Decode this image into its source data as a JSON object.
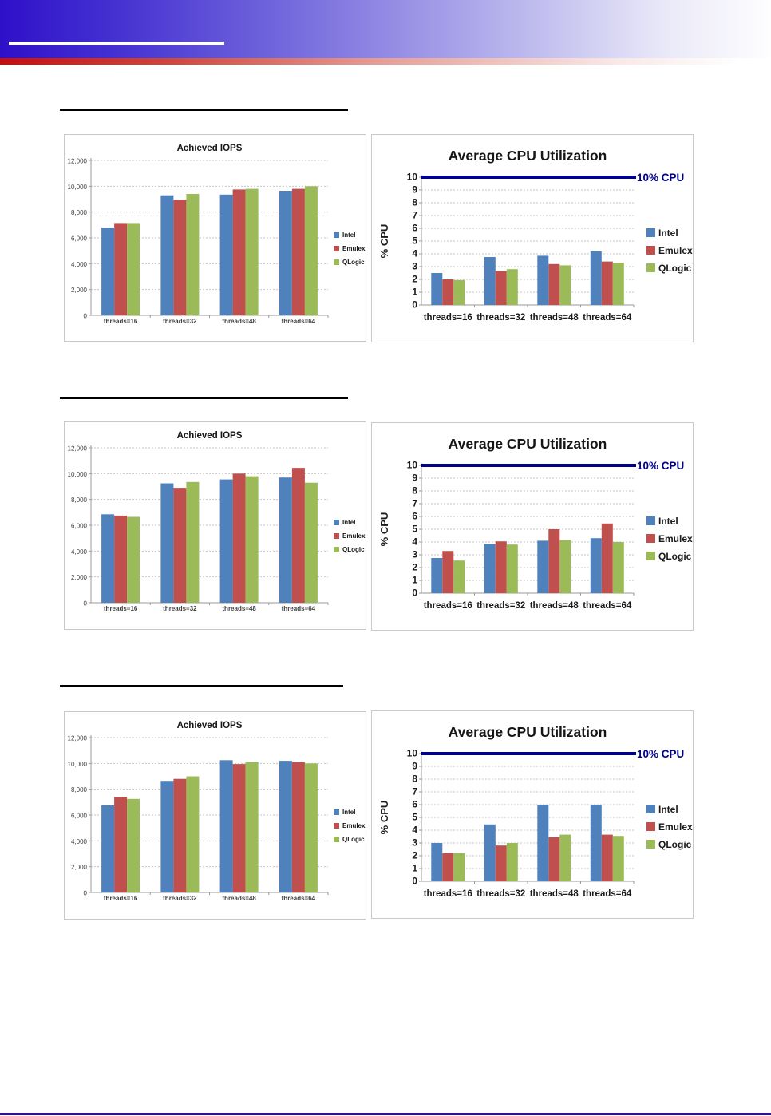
{
  "page": {
    "banner": {
      "gradient_left_color": "#2f10c9",
      "gradient_right_color": "#ffffff",
      "underline_color": "#ffffff",
      "red_stripe_left_color": "#c40f0f"
    },
    "footer_rule_color": "#2e0c9c",
    "section_heading_rules": 3
  },
  "legend_labels": [
    "Intel",
    "Emulex",
    "QLogic"
  ],
  "series_colors": {
    "Intel": "#4F81BD",
    "Emulex": "#C0504D",
    "QLogic": "#9BBB59"
  },
  "cpu_reference": {
    "label": "10% CPU",
    "value": 10,
    "color": "#00008B"
  },
  "chart_data": [
    {
      "id": "row1-iops",
      "type": "bar",
      "variant": "iops",
      "title": "Achieved IOPS",
      "categories": [
        "threads=16",
        "threads=32",
        "threads=48",
        "threads=64"
      ],
      "series": [
        {
          "name": "Intel",
          "color": "#4F81BD",
          "values": [
            6800,
            9300,
            9350,
            9650
          ]
        },
        {
          "name": "Emulex",
          "color": "#C0504D",
          "values": [
            7150,
            8950,
            9750,
            9800
          ]
        },
        {
          "name": "QLogic",
          "color": "#9BBB59",
          "values": [
            7150,
            9400,
            9800,
            10000
          ]
        }
      ],
      "xlabel": "",
      "ylabel": "",
      "ylim": [
        0,
        12000
      ],
      "ystep": 2000,
      "tick_format": "comma",
      "grid": true,
      "legend_position": "right"
    },
    {
      "id": "row1-cpu",
      "type": "bar",
      "variant": "cpu",
      "title": "Average CPU Utilization",
      "categories": [
        "threads=16",
        "threads=32",
        "threads=48",
        "threads=64"
      ],
      "series": [
        {
          "name": "Intel",
          "color": "#4F81BD",
          "values": [
            2.5,
            3.75,
            3.85,
            4.2
          ]
        },
        {
          "name": "Emulex",
          "color": "#C0504D",
          "values": [
            2.0,
            2.65,
            3.2,
            3.4
          ]
        },
        {
          "name": "QLogic",
          "color": "#9BBB59",
          "values": [
            1.95,
            2.8,
            3.1,
            3.3
          ]
        }
      ],
      "xlabel": "",
      "ylabel": "% CPU",
      "ylim": [
        0,
        10
      ],
      "ystep": 1,
      "tick_format": "plain",
      "grid": true,
      "legend_position": "right",
      "ref_line": {
        "value": 10,
        "label": "10% CPU",
        "color": "#00008B"
      }
    },
    {
      "id": "row2-iops",
      "type": "bar",
      "variant": "iops",
      "title": "Achieved IOPS",
      "categories": [
        "threads=16",
        "threads=32",
        "threads=48",
        "threads=64"
      ],
      "series": [
        {
          "name": "Intel",
          "color": "#4F81BD",
          "values": [
            6850,
            9250,
            9550,
            9700
          ]
        },
        {
          "name": "Emulex",
          "color": "#C0504D",
          "values": [
            6750,
            8900,
            10000,
            10450
          ]
        },
        {
          "name": "QLogic",
          "color": "#9BBB59",
          "values": [
            6650,
            9350,
            9800,
            9300
          ]
        }
      ],
      "xlabel": "",
      "ylabel": "",
      "ylim": [
        0,
        12000
      ],
      "ystep": 2000,
      "tick_format": "comma",
      "grid": true,
      "legend_position": "right"
    },
    {
      "id": "row2-cpu",
      "type": "bar",
      "variant": "cpu",
      "title": "Average CPU Utilization",
      "categories": [
        "threads=16",
        "threads=32",
        "threads=48",
        "threads=64"
      ],
      "series": [
        {
          "name": "Intel",
          "color": "#4F81BD",
          "values": [
            2.75,
            3.85,
            4.1,
            4.3
          ]
        },
        {
          "name": "Emulex",
          "color": "#C0504D",
          "values": [
            3.3,
            4.05,
            5.0,
            5.45
          ]
        },
        {
          "name": "QLogic",
          "color": "#9BBB59",
          "values": [
            2.55,
            3.8,
            4.15,
            4.0
          ]
        }
      ],
      "xlabel": "",
      "ylabel": "% CPU",
      "ylim": [
        0,
        10
      ],
      "ystep": 1,
      "tick_format": "plain",
      "grid": true,
      "legend_position": "right",
      "ref_line": {
        "value": 10,
        "label": "10% CPU",
        "color": "#00008B"
      }
    },
    {
      "id": "row3-iops",
      "type": "bar",
      "variant": "iops",
      "title": "Achieved IOPS",
      "categories": [
        "threads=16",
        "threads=32",
        "threads=48",
        "threads=64"
      ],
      "series": [
        {
          "name": "Intel",
          "color": "#4F81BD",
          "values": [
            6750,
            8650,
            10250,
            10200
          ]
        },
        {
          "name": "Emulex",
          "color": "#C0504D",
          "values": [
            7400,
            8800,
            9950,
            10100
          ]
        },
        {
          "name": "QLogic",
          "color": "#9BBB59",
          "values": [
            7250,
            9000,
            10100,
            10000
          ]
        }
      ],
      "xlabel": "",
      "ylabel": "",
      "ylim": [
        0,
        12000
      ],
      "ystep": 2000,
      "tick_format": "comma",
      "grid": true,
      "legend_position": "right"
    },
    {
      "id": "row3-cpu",
      "type": "bar",
      "variant": "cpu",
      "title": "Average CPU Utilization",
      "categories": [
        "threads=16",
        "threads=32",
        "threads=48",
        "threads=64"
      ],
      "series": [
        {
          "name": "Intel",
          "color": "#4F81BD",
          "values": [
            3.0,
            4.45,
            6.0,
            6.0
          ]
        },
        {
          "name": "Emulex",
          "color": "#C0504D",
          "values": [
            2.2,
            2.8,
            3.45,
            3.65
          ]
        },
        {
          "name": "QLogic",
          "color": "#9BBB59",
          "values": [
            2.2,
            3.0,
            3.65,
            3.55
          ]
        }
      ],
      "xlabel": "",
      "ylabel": "% CPU",
      "ylim": [
        0,
        10
      ],
      "ystep": 1,
      "tick_format": "plain",
      "grid": true,
      "legend_position": "right",
      "ref_line": {
        "value": 10,
        "label": "10% CPU",
        "color": "#00008B"
      }
    }
  ]
}
